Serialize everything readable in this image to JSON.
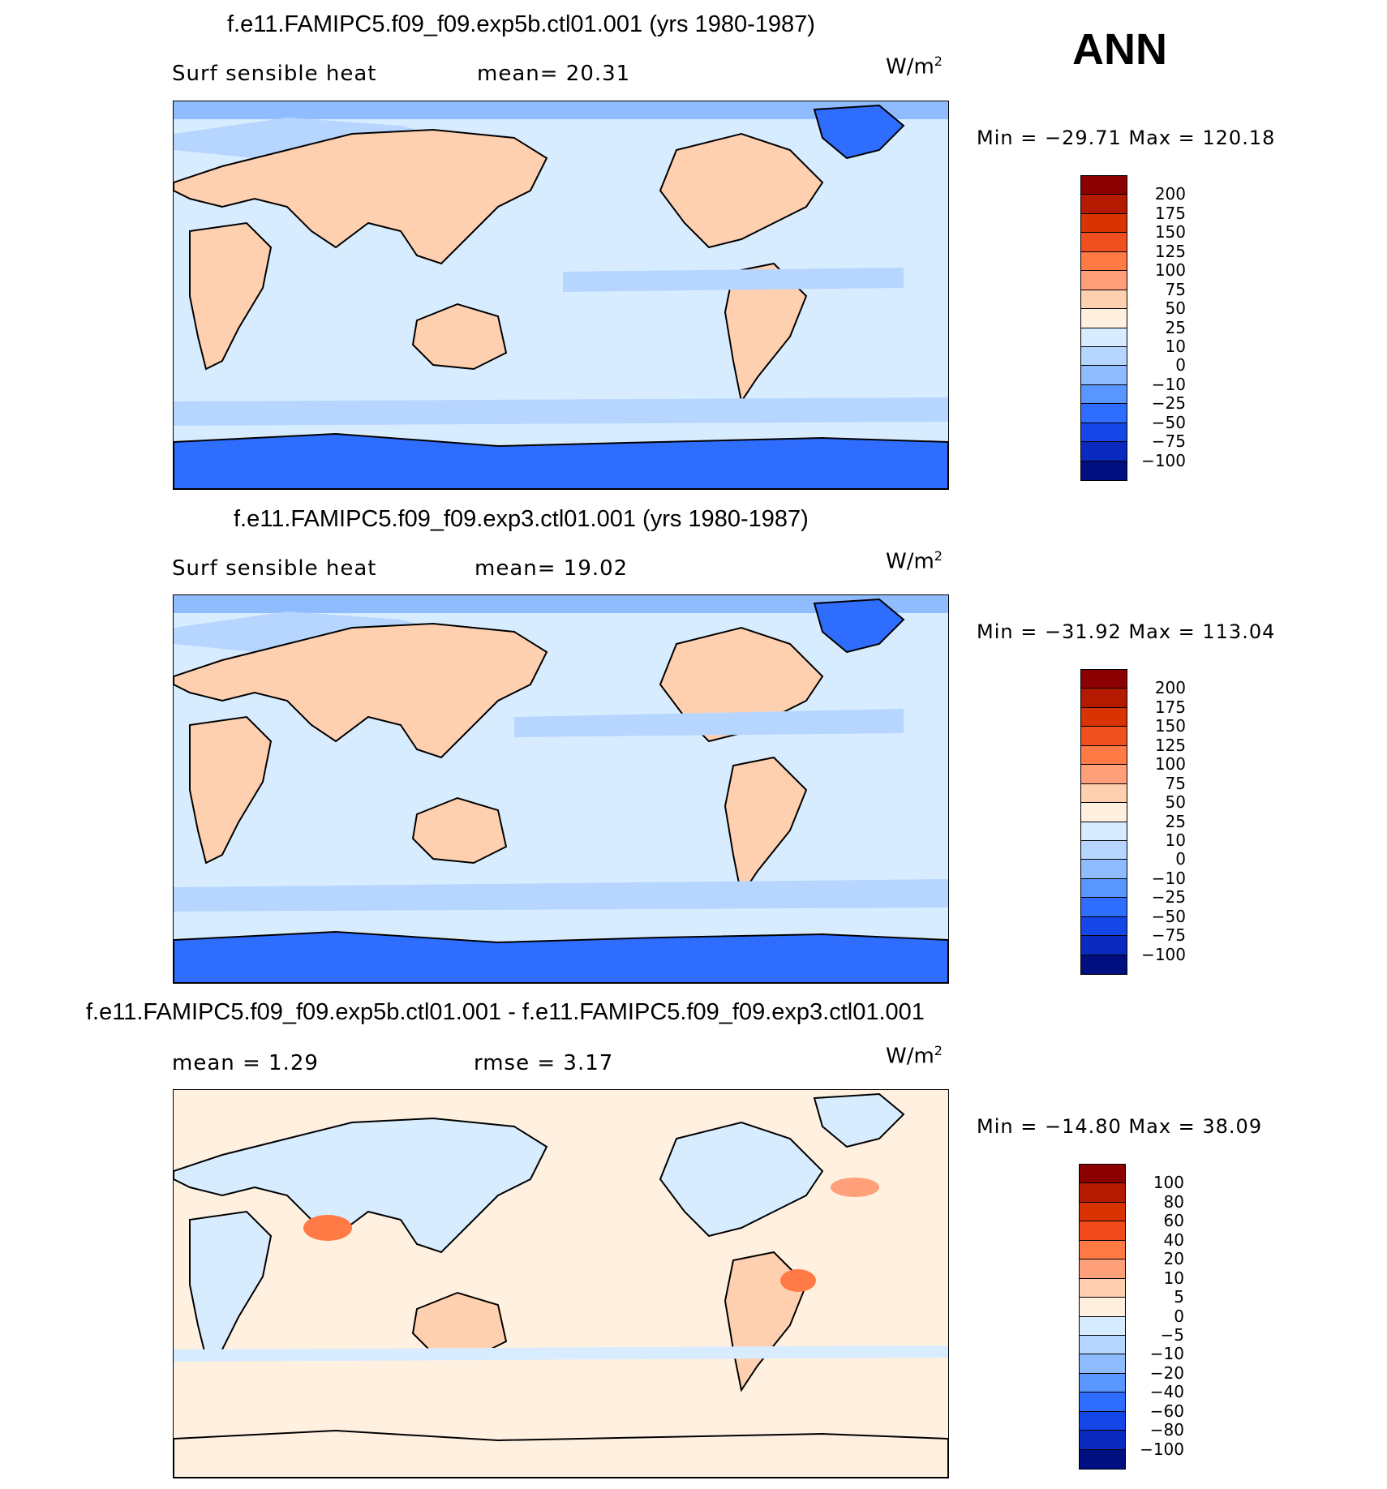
{
  "season": "ANN",
  "panels": [
    {
      "title": "f.e11.FAMIPC5.f09_f09.exp5b.ctl01.001 (yrs 1980-1987)",
      "variable": "Surf sensible heat",
      "stat": "mean=   20.31",
      "unit_base": "W/m",
      "unit_exp": "2",
      "minmax": "Min  =  −29.71  Max  =  120.18",
      "colorbar_labels": [
        "200",
        "175",
        "150",
        "125",
        "100",
        "75",
        "50",
        "25",
        "10",
        "0",
        "−10",
        "−25",
        "−50",
        "−75",
        "−100"
      ],
      "colors": [
        "#8b0000",
        "#b31a00",
        "#d83300",
        "#f05020",
        "#ff7a45",
        "#ffa07a",
        "#ffd0b0",
        "#fff0e0",
        "#d8ecff",
        "#b6d6ff",
        "#8fbcff",
        "#5a96ff",
        "#2f6dff",
        "#1446e8",
        "#0a2abf",
        "#000f80"
      ]
    },
    {
      "title": "f.e11.FAMIPC5.f09_f09.exp3.ctl01.001 (yrs 1980-1987)",
      "variable": "Surf sensible heat",
      "stat": "mean=   19.02",
      "unit_base": "W/m",
      "unit_exp": "2",
      "minmax": "Min  =  −31.92  Max  =  113.04",
      "colorbar_labels": [
        "200",
        "175",
        "150",
        "125",
        "100",
        "75",
        "50",
        "25",
        "10",
        "0",
        "−10",
        "−25",
        "−50",
        "−75",
        "−100"
      ],
      "colors": [
        "#8b0000",
        "#b31a00",
        "#d83300",
        "#f05020",
        "#ff7a45",
        "#ffa07a",
        "#ffd0b0",
        "#fff0e0",
        "#d8ecff",
        "#b6d6ff",
        "#8fbcff",
        "#5a96ff",
        "#2f6dff",
        "#1446e8",
        "#0a2abf",
        "#000f80"
      ]
    },
    {
      "title": "f.e11.FAMIPC5.f09_f09.exp5b.ctl01.001 - f.e11.FAMIPC5.f09_f09.exp3.ctl01.001",
      "variable": "mean  =     1.29",
      "stat": "rmse  =     3.17",
      "unit_base": "W/m",
      "unit_exp": "2",
      "minmax": "Min  =  −14.80  Max  =    38.09",
      "colorbar_labels": [
        "100",
        "80",
        "60",
        "40",
        "20",
        "10",
        "5",
        "0",
        "−5",
        "−10",
        "−20",
        "−40",
        "−60",
        "−80",
        "−100"
      ],
      "colors": [
        "#8b0000",
        "#b31a00",
        "#d83300",
        "#f04a1a",
        "#ff7a45",
        "#ffa07a",
        "#ffcfb0",
        "#fff0e0",
        "#d8ecff",
        "#b6d6ff",
        "#8fbcff",
        "#5a96ff",
        "#2f6dff",
        "#1446e8",
        "#0a2abf",
        "#000f80"
      ]
    }
  ]
}
